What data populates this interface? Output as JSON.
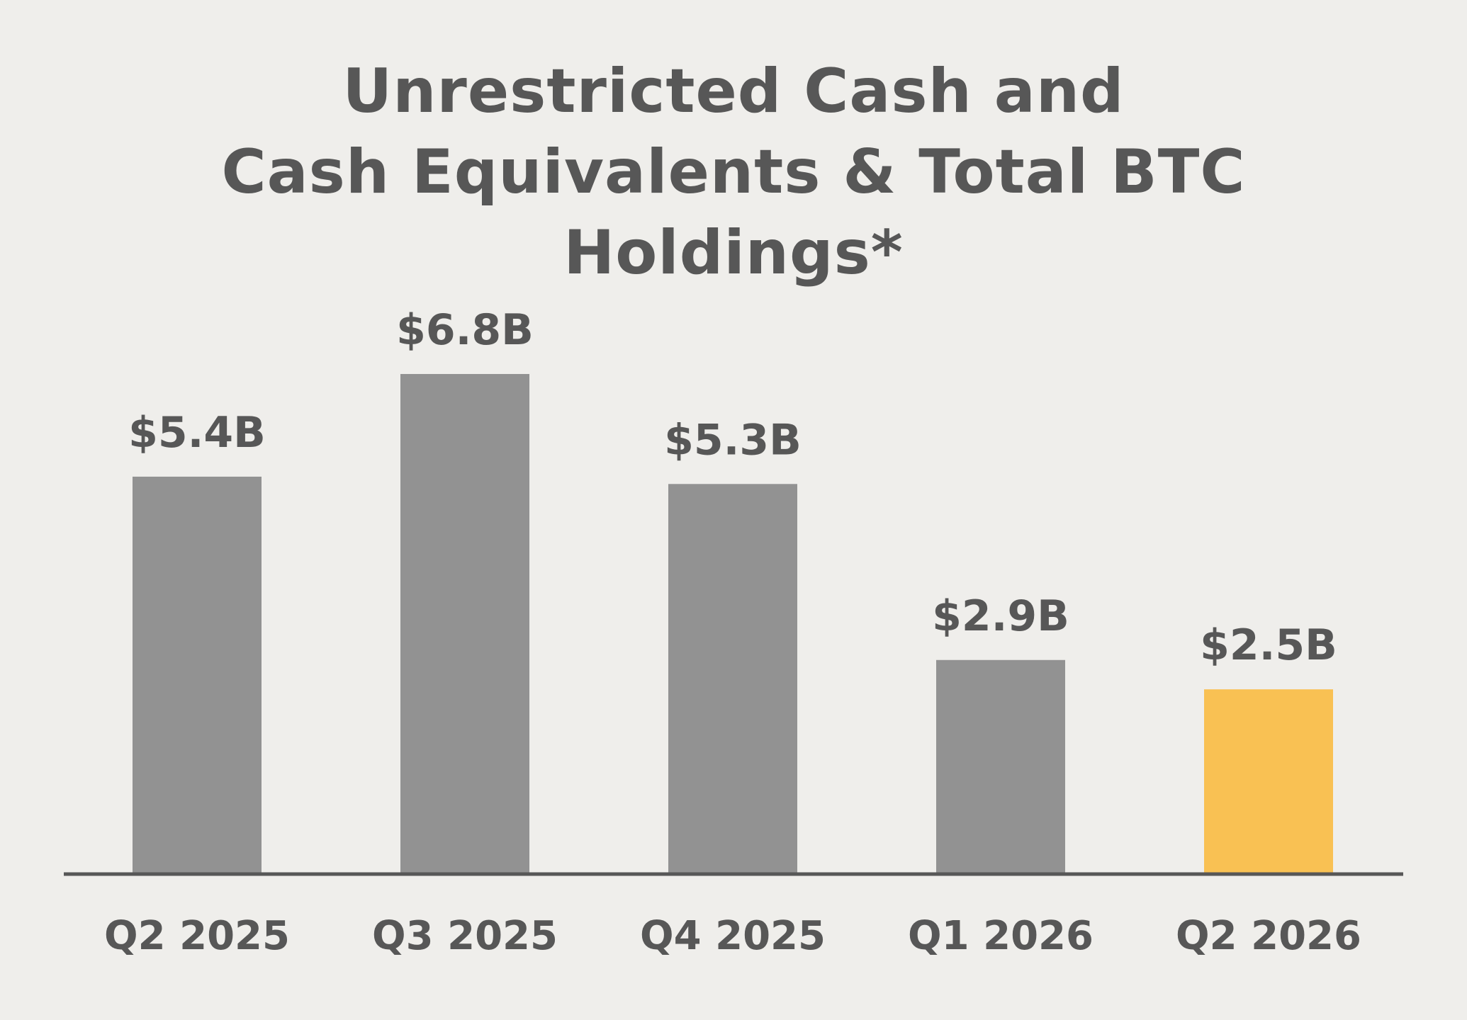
{
  "chart_data": {
    "type": "bar",
    "title_lines": [
      "Unrestricted Cash and",
      "Cash Equivalents & Total BTC",
      "Holdings*"
    ],
    "categories": [
      "Q2 2025",
      "Q3 2025",
      "Q4 2025",
      "Q1 2026",
      "Q2 2026"
    ],
    "values": [
      5.4,
      6.8,
      5.3,
      2.9,
      2.5
    ],
    "data_labels": [
      "$5.4B",
      "$6.8B",
      "$5.3B",
      "$2.9B",
      "$2.5B"
    ],
    "unit": "B",
    "ylim": [
      0,
      6.8
    ],
    "grid": false,
    "bar_colors": [
      "#929292",
      "#929292",
      "#929292",
      "#929292",
      "#f9c153"
    ],
    "text_color": "#575757",
    "axis_color": "#575757",
    "background": "#efeeeb"
  }
}
